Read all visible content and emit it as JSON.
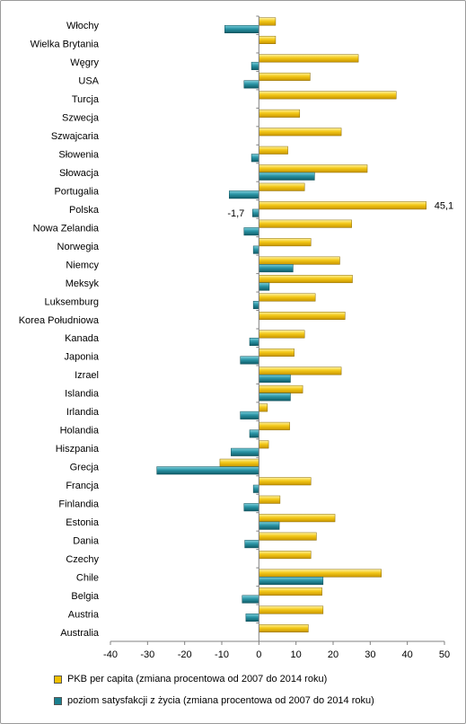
{
  "chart_data": {
    "type": "bar",
    "orientation": "horizontal",
    "categories": [
      "Włochy",
      "Wielka Brytania",
      "Węgry",
      "USA",
      "Turcja",
      "Szwecja",
      "Szwajcaria",
      "Słowenia",
      "Słowacja",
      "Portugalia",
      "Polska",
      "Nowa Zelandia",
      "Norwegia",
      "Niemcy",
      "Meksyk",
      "Luksemburg",
      "Korea Południowa",
      "Kanada",
      "Japonia",
      "Izrael",
      "Islandia",
      "Irlandia",
      "Holandia",
      "Hiszpania",
      "Grecja",
      "Francja",
      "Finlandia",
      "Estonia",
      "Dania",
      "Czechy",
      "Chile",
      "Belgia",
      "Austria",
      "Australia"
    ],
    "series": [
      {
        "name": "PKB per capita (zmiana procentowa od 2007 do 2014 roku)",
        "color": "#f0c000",
        "values": [
          4.5,
          4.5,
          26.8,
          13.8,
          37.0,
          11.0,
          22.2,
          7.8,
          29.2,
          12.3,
          45.1,
          25.0,
          14.0,
          21.8,
          25.2,
          15.2,
          23.2,
          12.3,
          9.5,
          22.2,
          11.8,
          2.3,
          8.3,
          2.6,
          -10.5,
          14.0,
          5.7,
          20.5,
          15.5,
          14.0,
          33.0,
          17.0,
          17.3,
          13.3
        ]
      },
      {
        "name": "poziom satysfakcji z życia (zmiana procentowa od 2007 do 2014 roku)",
        "color": "#1a7f8e",
        "values": [
          -9.2,
          0,
          -2.0,
          -4.0,
          0,
          0,
          0,
          -2.0,
          15.0,
          -8.0,
          -1.7,
          -4.0,
          -1.5,
          9.2,
          2.8,
          -1.5,
          0,
          -2.5,
          -5.0,
          8.5,
          8.5,
          -5.0,
          -2.5,
          -7.5,
          -27.5,
          -1.5,
          -4.0,
          5.5,
          -3.8,
          0,
          17.3,
          -4.5,
          -3.5,
          0
        ]
      }
    ],
    "data_labels": [
      {
        "category": "Polska",
        "series": 0,
        "text": "45,1"
      },
      {
        "category": "Polska",
        "series": 1,
        "text": "-1,7"
      }
    ],
    "xlim": [
      -40,
      50
    ],
    "xticks": [
      -40,
      -30,
      -20,
      -10,
      0,
      10,
      20,
      30,
      40,
      50
    ],
    "gridlines": false,
    "legend_position": "bottom",
    "title": "",
    "xlabel": "",
    "ylabel": ""
  }
}
